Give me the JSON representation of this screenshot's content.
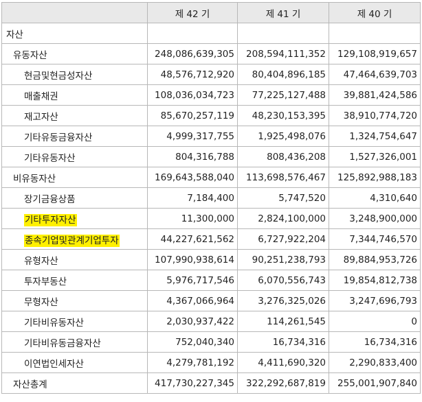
{
  "table": {
    "header": [
      "",
      "제 42 기",
      "제 41 기",
      "제 40 기"
    ],
    "rows": [
      {
        "label": "자산",
        "level": 0,
        "highlight": false,
        "values": [
          "",
          "",
          ""
        ]
      },
      {
        "label": "유동자산",
        "level": 1,
        "highlight": false,
        "values": [
          "248,086,639,305",
          "208,594,111,352",
          "129,108,919,657"
        ]
      },
      {
        "label": "현금및현금성자산",
        "level": 2,
        "highlight": false,
        "values": [
          "48,576,712,920",
          "80,404,896,185",
          "47,464,639,703"
        ]
      },
      {
        "label": "매출채권",
        "level": 2,
        "highlight": false,
        "values": [
          "108,036,034,723",
          "77,225,127,488",
          "39,881,424,586"
        ]
      },
      {
        "label": "재고자산",
        "level": 2,
        "highlight": false,
        "values": [
          "85,670,257,119",
          "48,230,153,395",
          "38,910,774,720"
        ]
      },
      {
        "label": "기타유동금융자산",
        "level": 2,
        "highlight": false,
        "values": [
          "4,999,317,755",
          "1,925,498,076",
          "1,324,754,647"
        ]
      },
      {
        "label": "기타유동자산",
        "level": 2,
        "highlight": false,
        "values": [
          "804,316,788",
          "808,436,208",
          "1,527,326,001"
        ]
      },
      {
        "label": "비유동자산",
        "level": 1,
        "highlight": false,
        "values": [
          "169,643,588,040",
          "113,698,576,467",
          "125,892,988,183"
        ]
      },
      {
        "label": "장기금융상품",
        "level": 2,
        "highlight": false,
        "values": [
          "7,184,400",
          "5,747,520",
          "4,310,640"
        ]
      },
      {
        "label": "기타투자자산",
        "level": 2,
        "highlight": true,
        "values": [
          "11,300,000",
          "2,824,100,000",
          "3,248,900,000"
        ]
      },
      {
        "label": "종속기업및관계기업투자",
        "level": 2,
        "highlight": true,
        "values": [
          "44,227,621,562",
          "6,727,922,204",
          "7,344,746,570"
        ]
      },
      {
        "label": "유형자산",
        "level": 2,
        "highlight": false,
        "values": [
          "107,990,938,614",
          "90,251,238,793",
          "89,884,953,726"
        ]
      },
      {
        "label": "투자부동산",
        "level": 2,
        "highlight": false,
        "values": [
          "5,976,717,546",
          "6,070,556,743",
          "19,854,812,738"
        ]
      },
      {
        "label": "무형자산",
        "level": 2,
        "highlight": false,
        "values": [
          "4,367,066,964",
          "3,276,325,026",
          "3,247,696,793"
        ]
      },
      {
        "label": "기타비유동자산",
        "level": 2,
        "highlight": false,
        "values": [
          "2,030,937,422",
          "114,261,545",
          "0"
        ]
      },
      {
        "label": "기타비유동금융자산",
        "level": 2,
        "highlight": false,
        "values": [
          "752,040,340",
          "16,734,316",
          "16,734,316"
        ]
      },
      {
        "label": "이연법인세자산",
        "level": 2,
        "highlight": false,
        "values": [
          "4,279,781,192",
          "4,411,690,320",
          "2,290,833,400"
        ]
      },
      {
        "label": "자산총계",
        "level": 1,
        "highlight": false,
        "values": [
          "417,730,227,345",
          "322,292,687,819",
          "255,001,907,840"
        ]
      }
    ]
  },
  "colors": {
    "header_bg": "#e9e9e9",
    "border": "#b7b7b7",
    "highlight": "#fff000",
    "text": "#222222"
  }
}
